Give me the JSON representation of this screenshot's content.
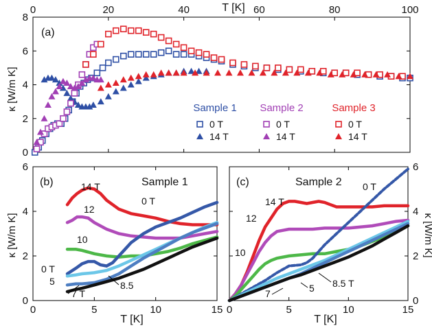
{
  "chart_data": [
    {
      "id": "a",
      "type": "scatter",
      "panel_label": "(a)",
      "xlabel": "T [K]",
      "ylabel": "κ [W/m K]",
      "xlim": [
        0,
        100
      ],
      "ylim": [
        0,
        8
      ],
      "xticks": [
        0,
        20,
        40,
        60,
        80,
        100
      ],
      "yticks": [
        0,
        2,
        4,
        6,
        8
      ],
      "x_axis_position": "top",
      "legend": {
        "groups": [
          {
            "title": "Sample 1",
            "color": "#2e4fa5",
            "entries": [
              {
                "label": "0 T",
                "marker": "open-square"
              },
              {
                "label": "14 T",
                "marker": "filled-triangle"
              }
            ]
          },
          {
            "title": "Sample 2",
            "color": "#a13fb4",
            "entries": [
              {
                "label": "0 T",
                "marker": "open-square"
              },
              {
                "label": "14 T",
                "marker": "filled-triangle"
              }
            ]
          },
          {
            "title": "Sample 3",
            "color": "#e0232a",
            "entries": [
              {
                "label": "0 T",
                "marker": "open-square"
              },
              {
                "label": "14 T",
                "marker": "filled-triangle"
              }
            ]
          }
        ]
      },
      "series": [
        {
          "sample": "Sample 1",
          "field": "0 T",
          "color": "#2e4fa5",
          "marker": "open-square",
          "x": [
            0.5,
            1.5,
            2.5,
            3.5,
            4.5,
            5.5,
            6.5,
            7.5,
            8.5,
            9.5,
            10.5,
            11.5,
            12.5,
            13.5,
            14.5,
            15.5,
            17,
            18.5,
            20,
            22,
            24,
            26,
            28,
            30,
            32,
            34,
            36,
            38,
            40,
            42,
            44,
            46,
            48,
            50,
            53,
            56,
            59,
            62,
            65,
            68,
            71,
            74,
            77,
            80,
            83,
            86,
            89,
            92,
            95,
            98,
            100
          ],
          "y": [
            0,
            0.3,
            0.7,
            1.1,
            1.4,
            1.6,
            1.7,
            1.7,
            2.0,
            2.5,
            3.0,
            3.5,
            3.9,
            4.1,
            4.3,
            4.4,
            4.7,
            5.0,
            5.3,
            5.5,
            5.7,
            5.8,
            5.8,
            5.8,
            5.8,
            5.9,
            6.0,
            5.8,
            5.8,
            5.8,
            5.7,
            5.6,
            5.5,
            5.4,
            5.2,
            5.1,
            5.0,
            5.0,
            4.9,
            4.9,
            4.8,
            4.8,
            4.7,
            4.7,
            4.7,
            4.6,
            4.6,
            4.5,
            4.5,
            4.4,
            4.4
          ]
        },
        {
          "sample": "Sample 1",
          "field": "14 T",
          "color": "#2e4fa5",
          "marker": "filled-triangle",
          "x": [
            3,
            4,
            5,
            6,
            7,
            8,
            9,
            10,
            11,
            12,
            13,
            14,
            15,
            16,
            18,
            20,
            22,
            24,
            26,
            28,
            30,
            32,
            34,
            36,
            38,
            40,
            42,
            44,
            46
          ],
          "y": [
            4.3,
            4.4,
            4.4,
            4.3,
            4.1,
            3.8,
            3.5,
            3.2,
            3.0,
            2.8,
            2.7,
            2.7,
            2.7,
            2.8,
            3.0,
            3.3,
            3.6,
            3.8,
            4.0,
            4.2,
            4.4,
            4.5,
            4.6,
            4.7,
            4.7,
            4.8,
            4.8,
            4.8,
            4.8
          ]
        },
        {
          "sample": "Sample 2",
          "field": "0 T",
          "color": "#a13fb4",
          "marker": "open-square",
          "x": [
            1,
            2,
            3,
            4,
            5,
            6,
            7,
            8,
            9,
            10,
            11,
            12,
            13,
            14,
            15,
            16,
            17
          ],
          "y": [
            0.2,
            0.6,
            1.1,
            1.4,
            1.5,
            1.6,
            1.7,
            2.0,
            2.4,
            2.9,
            3.5,
            4.0,
            4.6,
            5.2,
            5.8,
            6.2,
            6.4
          ]
        },
        {
          "sample": "Sample 2",
          "field": "14 T",
          "color": "#a13fb4",
          "marker": "filled-triangle",
          "x": [
            1,
            2,
            3,
            4,
            5,
            6,
            7,
            8,
            9,
            10,
            11,
            12,
            13,
            14,
            15,
            16,
            17,
            18
          ],
          "y": [
            0.6,
            1.2,
            2.0,
            2.8,
            3.3,
            3.6,
            3.9,
            4.2,
            4.1,
            3.9,
            3.8,
            3.9,
            4.1,
            4.3,
            4.4,
            4.4,
            4.3,
            4.3
          ]
        },
        {
          "sample": "Sample 3",
          "field": "0 T",
          "color": "#e0232a",
          "marker": "open-square",
          "x": [
            14,
            16,
            18,
            20,
            22,
            24,
            26,
            28,
            30,
            32,
            34,
            36,
            38,
            40,
            42,
            44,
            46,
            48,
            50,
            53,
            56,
            59,
            62,
            65,
            68,
            71,
            74,
            77,
            80,
            83,
            86,
            89,
            92,
            95,
            98
          ],
          "y": [
            5.2,
            5.8,
            6.4,
            7.0,
            7.2,
            7.3,
            7.2,
            7.2,
            7.1,
            7.0,
            6.8,
            6.6,
            6.4,
            6.2,
            6.0,
            5.9,
            5.8,
            5.6,
            5.5,
            5.3,
            5.2,
            5.1,
            5.0,
            5.0,
            4.9,
            4.9,
            4.8,
            4.8,
            4.7,
            4.7,
            4.7,
            4.6,
            4.6,
            4.5,
            4.5
          ]
        },
        {
          "sample": "Sample 3",
          "field": "14 T",
          "color": "#e0232a",
          "marker": "filled-triangle",
          "x": [
            18,
            20,
            22,
            24,
            26,
            28,
            30,
            32,
            34,
            36,
            38,
            40,
            43,
            46,
            49,
            52,
            55,
            58,
            61,
            64,
            67,
            70,
            73,
            76,
            79,
            82,
            85,
            88,
            91,
            94,
            97,
            100
          ],
          "y": [
            3.8,
            4.0,
            4.1,
            4.3,
            4.4,
            4.5,
            4.6,
            4.6,
            4.7,
            4.7,
            4.7,
            4.7,
            4.7,
            4.7,
            4.7,
            4.7,
            4.7,
            4.7,
            4.7,
            4.7,
            4.7,
            4.7,
            4.7,
            4.7,
            4.6,
            4.6,
            4.6,
            4.6,
            4.6,
            4.6,
            4.5,
            4.5
          ]
        }
      ]
    },
    {
      "id": "b",
      "type": "line",
      "panel_label": "(b)",
      "title": "Sample 1",
      "xlabel": "T [K]",
      "ylabel": "κ [W/m K]",
      "xlim": [
        0,
        15
      ],
      "ylim": [
        0,
        6
      ],
      "xticks": [
        0,
        5,
        10,
        15
      ],
      "yticks": [
        0,
        2,
        4,
        6
      ],
      "series": [
        {
          "name": "14 T",
          "color": "#e0232a",
          "x": [
            2.8,
            3.2,
            3.6,
            4.0,
            4.5,
            5.0,
            5.5,
            6,
            7,
            8,
            9,
            10,
            11,
            12,
            13,
            14,
            15
          ],
          "y": [
            4.3,
            4.6,
            4.8,
            4.95,
            5.05,
            5.0,
            4.8,
            4.5,
            4.1,
            3.9,
            3.8,
            3.7,
            3.55,
            3.45,
            3.4,
            3.4,
            3.4
          ]
        },
        {
          "name": "12",
          "color": "#b04bb9",
          "x": [
            2.8,
            3.2,
            3.6,
            4.0,
            4.5,
            5,
            6,
            7,
            8,
            9,
            10,
            11,
            12,
            13,
            14,
            15
          ],
          "y": [
            3.5,
            3.6,
            3.75,
            3.75,
            3.7,
            3.5,
            3.2,
            3.0,
            2.9,
            2.85,
            2.8,
            2.8,
            2.8,
            2.9,
            3.0,
            3.1
          ]
        },
        {
          "name": "10",
          "color": "#4db848",
          "x": [
            2.8,
            3.5,
            4,
            5,
            6,
            7,
            8,
            9,
            10,
            11,
            12,
            13,
            14,
            15
          ],
          "y": [
            2.3,
            2.3,
            2.25,
            2.1,
            2.0,
            1.95,
            2.0,
            2.0,
            2.1,
            2.2,
            2.35,
            2.55,
            2.7,
            2.85
          ]
        },
        {
          "name": "0 T",
          "color": "#3558a8",
          "x": [
            2.8,
            3.5,
            4.0,
            4.5,
            5.0,
            5.5,
            6.0,
            6.5,
            7.0,
            7.5,
            8.0,
            9,
            10,
            11,
            12,
            13,
            14,
            15
          ],
          "y": [
            1.2,
            1.45,
            1.65,
            1.75,
            1.75,
            1.6,
            1.55,
            1.7,
            2.0,
            2.3,
            2.6,
            3.0,
            3.3,
            3.5,
            3.7,
            3.95,
            4.2,
            4.4
          ]
        },
        {
          "name": "8.5",
          "color": "#6cc7e8",
          "x": [
            2.8,
            3.5,
            4,
            5,
            6,
            7,
            8,
            9,
            10,
            11,
            12,
            13,
            14,
            15
          ],
          "y": [
            1.1,
            1.15,
            1.2,
            1.25,
            1.35,
            1.55,
            1.8,
            2.05,
            2.3,
            2.55,
            2.8,
            3.05,
            3.3,
            3.5
          ]
        },
        {
          "name": "5",
          "color": "#4d7ec2",
          "x": [
            2.8,
            3.5,
            4,
            5,
            6,
            7,
            8,
            9,
            10,
            11,
            12,
            13,
            14,
            15
          ],
          "y": [
            0.7,
            0.75,
            0.75,
            0.8,
            0.95,
            1.2,
            1.55,
            1.9,
            2.2,
            2.5,
            2.8,
            3.05,
            3.25,
            3.45
          ]
        },
        {
          "name": "7 T",
          "color": "#111111",
          "x": [
            2.8,
            3.5,
            4,
            5,
            6,
            7,
            8,
            9,
            10,
            11,
            12,
            13,
            14,
            15
          ],
          "y": [
            0.4,
            0.5,
            0.55,
            0.7,
            0.85,
            1.0,
            1.2,
            1.4,
            1.65,
            1.9,
            2.15,
            2.4,
            2.6,
            2.8
          ]
        }
      ],
      "annotations": [
        "14 T",
        "12",
        "10",
        "0 T",
        "0 T",
        "5",
        "7 T",
        "8.5"
      ]
    },
    {
      "id": "c",
      "type": "line",
      "panel_label": "(c)",
      "title": "Sample 2",
      "xlabel": "T [K]",
      "ylabel": "κ [W/m K]",
      "xlim": [
        0,
        15
      ],
      "ylim": [
        0,
        6
      ],
      "xticks": [
        0,
        5,
        10,
        15
      ],
      "yticks": [
        0,
        2,
        4,
        6
      ],
      "y_axis_position": "right",
      "series": [
        {
          "name": "14 T",
          "color": "#e0232a",
          "x": [
            0,
            0.5,
            1,
            1.5,
            2,
            2.5,
            3,
            3.5,
            4,
            4.5,
            5,
            5.5,
            6,
            6.5,
            7,
            7.5,
            8,
            8.5,
            9,
            10,
            11,
            12,
            13,
            14,
            15
          ],
          "y": [
            0,
            0.3,
            0.7,
            1.3,
            2.0,
            2.7,
            3.3,
            3.7,
            4.1,
            4.35,
            4.45,
            4.45,
            4.4,
            4.35,
            4.4,
            4.45,
            4.4,
            4.3,
            4.2,
            4.2,
            4.2,
            4.2,
            4.25,
            4.25,
            4.25
          ]
        },
        {
          "name": "12",
          "color": "#b04bb9",
          "x": [
            0,
            0.5,
            1,
            1.5,
            2,
            2.5,
            3,
            3.5,
            4,
            5,
            6,
            7,
            8,
            9,
            10,
            11,
            12,
            13,
            14,
            15
          ],
          "y": [
            0,
            0.3,
            0.7,
            1.2,
            1.7,
            2.2,
            2.6,
            2.9,
            3.1,
            3.2,
            3.2,
            3.2,
            3.25,
            3.25,
            3.25,
            3.3,
            3.35,
            3.45,
            3.55,
            3.6
          ]
        },
        {
          "name": "10",
          "color": "#4db848",
          "x": [
            0,
            0.5,
            1,
            1.5,
            2,
            2.5,
            3,
            3.5,
            4,
            5,
            6,
            7,
            8,
            9,
            10,
            11,
            12,
            13,
            14,
            15
          ],
          "y": [
            0,
            0.2,
            0.5,
            0.8,
            1.1,
            1.4,
            1.65,
            1.8,
            1.9,
            2.0,
            2.05,
            2.1,
            2.1,
            2.2,
            2.3,
            2.45,
            2.65,
            2.85,
            3.1,
            3.35
          ]
        },
        {
          "name": "0 T",
          "color": "#3558a8",
          "x": [
            0,
            1,
            2,
            3,
            4,
            5,
            6,
            6.5,
            7,
            7.5,
            8,
            9,
            10,
            11,
            12,
            13,
            14,
            15
          ],
          "y": [
            0,
            0.3,
            0.6,
            0.9,
            1.25,
            1.55,
            1.6,
            1.7,
            1.9,
            2.2,
            2.5,
            3.0,
            3.5,
            4.0,
            4.5,
            5.0,
            5.45,
            5.9
          ]
        },
        {
          "name": "8.5 T",
          "color": "#6cc7e8",
          "x": [
            0,
            1,
            2,
            3,
            4,
            5,
            6,
            7,
            8,
            9,
            10,
            11,
            12,
            13,
            14,
            15
          ],
          "y": [
            0,
            0.25,
            0.5,
            0.75,
            1.0,
            1.2,
            1.4,
            1.6,
            1.8,
            2.05,
            2.3,
            2.55,
            2.8,
            3.05,
            3.3,
            3.55
          ]
        },
        {
          "name": "5",
          "color": "#4d7ec2",
          "x": [
            0,
            1,
            2,
            3,
            4,
            5,
            6,
            7,
            8,
            9,
            10,
            11,
            12,
            13,
            14,
            15
          ],
          "y": [
            0,
            0.2,
            0.4,
            0.6,
            0.8,
            1.0,
            1.2,
            1.45,
            1.7,
            1.95,
            2.2,
            2.45,
            2.7,
            2.95,
            3.2,
            3.45
          ]
        },
        {
          "name": "7",
          "color": "#111111",
          "x": [
            0,
            1,
            2,
            3,
            4,
            5,
            6,
            7,
            8,
            9,
            10,
            11,
            12,
            13,
            14,
            15
          ],
          "y": [
            0,
            0.2,
            0.4,
            0.6,
            0.8,
            1.0,
            1.15,
            1.35,
            1.55,
            1.75,
            1.95,
            2.2,
            2.45,
            2.75,
            3.05,
            3.35
          ]
        }
      ],
      "annotations": [
        "14 T",
        "12",
        "10",
        "0 T",
        "5",
        "7",
        "8.5  T"
      ]
    }
  ]
}
